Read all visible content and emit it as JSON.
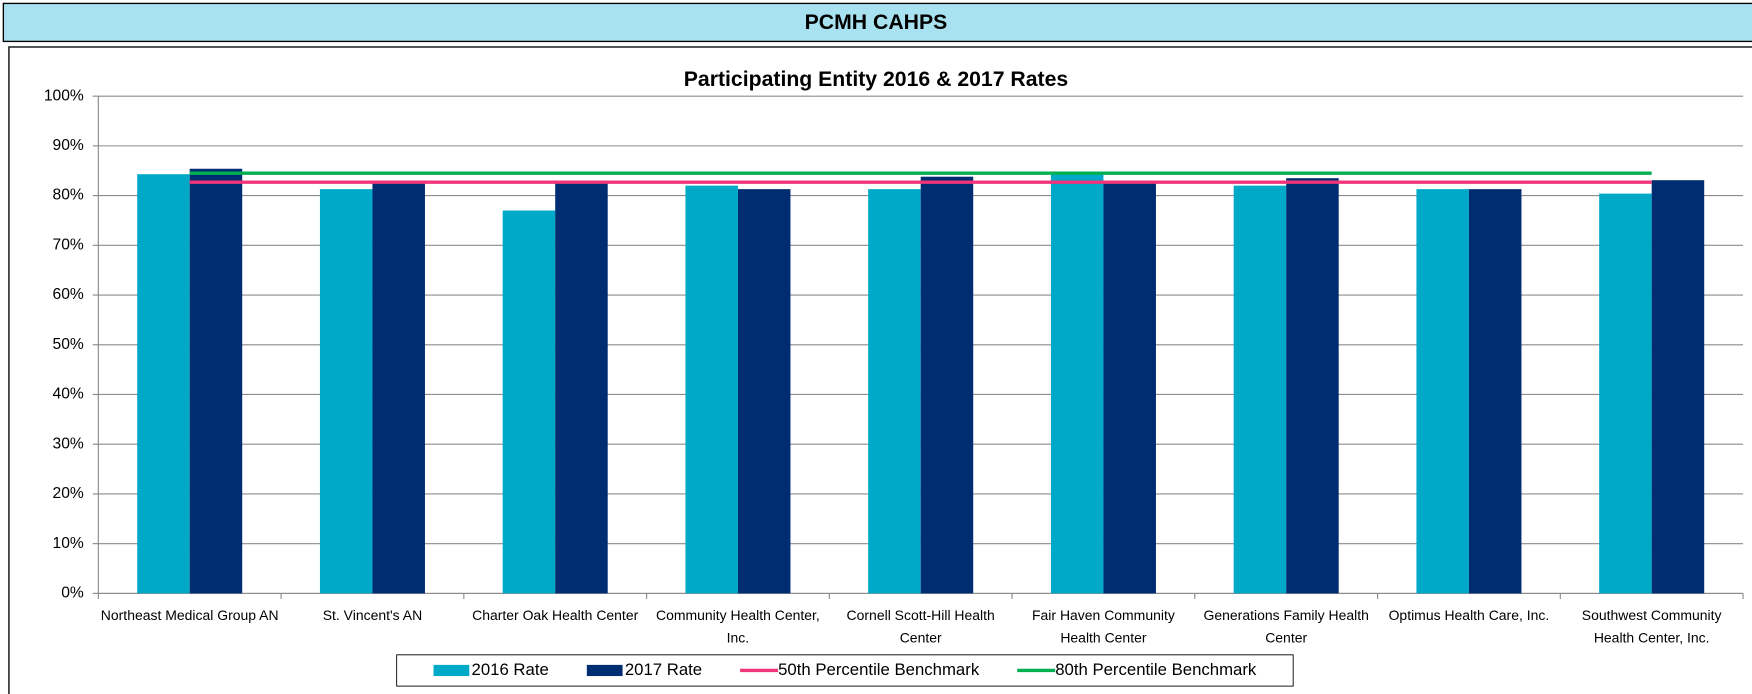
{
  "header": "PCMH CAHPS",
  "chart_data": {
    "type": "bar",
    "title": "Participating Entity 2016 & 2017 Rates",
    "categories": [
      "Northeast Medical Group AN",
      "St. Vincent's AN",
      "Charter Oak Health Center",
      "Community Health Center, Inc.",
      "Cornell Scott-Hill Health Center",
      "Fair Haven Community Health Center",
      "Generations Family Health Center",
      "Optimus Health Care, Inc.",
      "Southwest Community Health Center, Inc."
    ],
    "series": [
      {
        "name": "2016 Rate",
        "type": "bar",
        "color": "#00a9c8",
        "values": [
          84.3,
          81.3,
          77.0,
          82.0,
          81.3,
          84.4,
          82.0,
          81.3,
          80.4
        ]
      },
      {
        "name": "2017 Rate",
        "type": "bar",
        "color": "#002d72",
        "values": [
          85.4,
          82.9,
          82.5,
          81.3,
          83.8,
          82.5,
          83.5,
          81.3,
          83.1
        ]
      },
      {
        "name": "50th Percentile Benchmark",
        "type": "line",
        "color": "#f0357a",
        "values": [
          82.7,
          82.7,
          82.7,
          82.7,
          82.7,
          82.7,
          82.7,
          82.7,
          82.7
        ]
      },
      {
        "name": "80th Percentile Benchmark",
        "type": "line",
        "color": "#00b050",
        "values": [
          84.5,
          84.5,
          84.5,
          84.5,
          84.5,
          84.5,
          84.5,
          84.5,
          84.5
        ]
      }
    ],
    "ylim": [
      0,
      100
    ],
    "yticks": [
      {
        "value": 0,
        "label": "0%"
      },
      {
        "value": 10,
        "label": "10%"
      },
      {
        "value": 20,
        "label": "20%"
      },
      {
        "value": 30,
        "label": "30%"
      },
      {
        "value": 40,
        "label": "40%"
      },
      {
        "value": 50,
        "label": "50%"
      },
      {
        "value": 60,
        "label": "60%"
      },
      {
        "value": 70,
        "label": "70%"
      },
      {
        "value": 80,
        "label": "80%"
      },
      {
        "value": 90,
        "label": "90%"
      },
      {
        "value": 100,
        "label": "100%"
      }
    ],
    "grid": true,
    "legend": "bottom"
  }
}
